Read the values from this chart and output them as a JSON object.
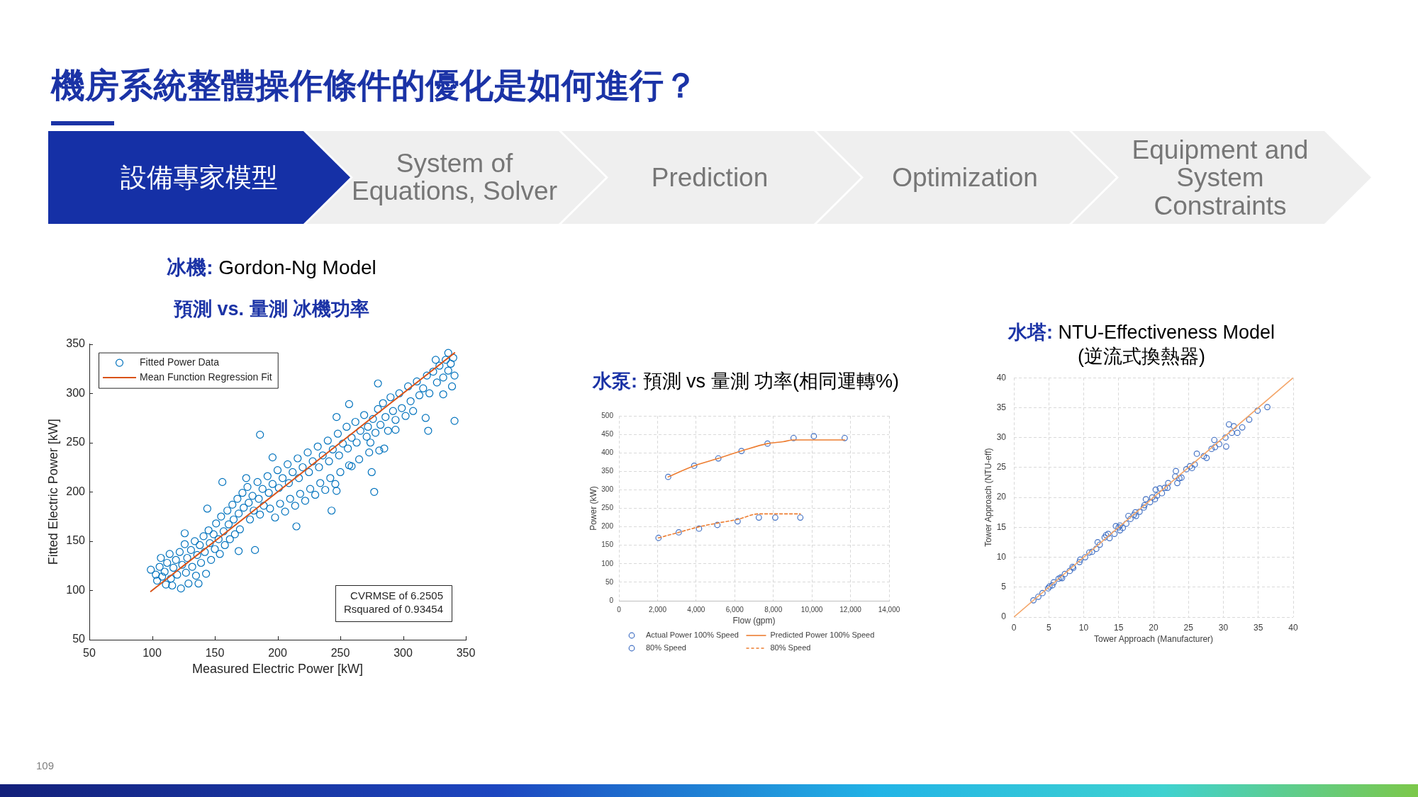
{
  "chart_data": [
    {
      "type": "other",
      "title": "機房系統整體操作條件的優化是如何進行？",
      "annotations": [
        "設備專家模型",
        "System of Equations, Solver",
        "Prediction",
        "Optimization",
        "Equipment and System Constraints",
        "109"
      ]
    },
    {
      "type": "scatter",
      "title": "冰機: Gordon-Ng Model",
      "subtitle": "預測 vs. 量測 冰機功率",
      "xlabel": "Measured Electric Power [kW]",
      "ylabel": "Fitted Electric Power [kW]",
      "xlim": [
        50,
        350
      ],
      "ylim": [
        50,
        350
      ],
      "xticks": [
        50,
        100,
        150,
        200,
        250,
        300,
        350
      ],
      "yticks": [
        50,
        100,
        150,
        200,
        250,
        300,
        350
      ],
      "legend": "top left",
      "marker": "circle",
      "annotations": [
        "CVRMSE of 6.2505",
        "Rsquared of 0.93454"
      ],
      "series": [
        {
          "name": "Fitted Power Data",
          "color": "#0072bd",
          "x": [
            99,
            103,
            104,
            106,
            107,
            108,
            110,
            111,
            112,
            114,
            115,
            116,
            117,
            119,
            120,
            122,
            123,
            124,
            126,
            127,
            128,
            129,
            131,
            132,
            134,
            135,
            136,
            138,
            139,
            141,
            142,
            143,
            145,
            146,
            147,
            149,
            150,
            151,
            153,
            154,
            155,
            157,
            158,
            160,
            161,
            162,
            164,
            165,
            166,
            168,
            169,
            170,
            172,
            173,
            176,
            177,
            178,
            180,
            181,
            184,
            185,
            186,
            188,
            189,
            192,
            193,
            194,
            196,
            198,
            200,
            201,
            202,
            204,
            206,
            208,
            209,
            210,
            212,
            214,
            216,
            217,
            218,
            220,
            222,
            224,
            225,
            226,
            228,
            230,
            232,
            233,
            234,
            236,
            238,
            240,
            241,
            242,
            244,
            246,
            248,
            249,
            250,
            252,
            255,
            256,
            257,
            259,
            262,
            263,
            265,
            266,
            269,
            271,
            272,
            274,
            276,
            278,
            280,
            282,
            284,
            286,
            288,
            290,
            292,
            294,
            297,
            299,
            302,
            304,
            306,
            308,
            311,
            313,
            316,
            319,
            321,
            324,
            327,
            329,
            332,
            334,
            336,
            338,
            340,
            341,
            186,
            277,
            275,
            243,
            215,
            341,
            320,
            318,
            294,
            247,
            257,
            273,
            281,
            285,
            196,
            156,
            175,
            144,
            126,
            137,
            182,
            169,
            332,
            326,
            336,
            247,
            280,
            339,
            259
          ],
          "values": [
            121,
            116,
            110,
            124,
            133,
            114,
            119,
            106,
            128,
            137,
            112,
            105,
            123,
            131,
            116,
            139,
            102,
            126,
            147,
            118,
            133,
            107,
            141,
            124,
            150,
            115,
            136,
            146,
            128,
            155,
            139,
            117,
            161,
            148,
            131,
            157,
            142,
            168,
            152,
            137,
            175,
            160,
            146,
            181,
            167,
            152,
            187,
            172,
            157,
            193,
            178,
            162,
            199,
            184,
            205,
            189,
            172,
            196,
            181,
            210,
            193,
            177,
            203,
            186,
            216,
            199,
            183,
            208,
            174,
            222,
            204,
            188,
            214,
            180,
            228,
            209,
            193,
            220,
            186,
            234,
            214,
            198,
            225,
            191,
            240,
            220,
            203,
            231,
            197,
            246,
            225,
            209,
            237,
            202,
            252,
            231,
            214,
            243,
            208,
            259,
            237,
            220,
            249,
            266,
            244,
            227,
            255,
            271,
            250,
            233,
            262,
            278,
            256,
            266,
            250,
            274,
            260,
            284,
            268,
            290,
            276,
            262,
            296,
            282,
            273,
            300,
            285,
            277,
            307,
            292,
            282,
            312,
            298,
            305,
            318,
            300,
            322,
            311,
            328,
            316,
            334,
            323,
            330,
            336,
            318,
            258,
            200,
            220,
            181,
            165,
            272,
            262,
            275,
            263,
            201,
            289,
            240,
            242,
            244,
            235,
            210,
            214,
            183,
            158,
            107,
            141,
            140,
            299,
            334,
            341,
            276,
            310,
            307,
            226
          ]
        },
        {
          "name": "Mean Function Regression Fit",
          "type": "line",
          "marker": "none",
          "color": "#d95319",
          "x": [
            99,
            341
          ],
          "values": [
            99,
            341
          ]
        }
      ]
    },
    {
      "type": "scatter",
      "title": "水泵: 預測 vs 量測 功率(相同運轉%)",
      "xlabel": "Flow (gpm)",
      "ylabel": "Power (kW)",
      "xlim": [
        0,
        14000
      ],
      "ylim": [
        0,
        500
      ],
      "xticks": [
        0,
        {
          "value": 2000,
          "label": "2,000"
        },
        {
          "value": 4000,
          "label": "4,000"
        },
        {
          "value": 6000,
          "label": "6,000"
        },
        {
          "value": 8000,
          "label": "8,000"
        },
        {
          "value": 10000,
          "label": "10,000"
        },
        {
          "value": 12000,
          "label": "12,000"
        },
        {
          "value": 14000,
          "label": "14,000"
        }
      ],
      "yticks": [
        0,
        50,
        100,
        150,
        200,
        250,
        300,
        350,
        400,
        450,
        500
      ],
      "grid": true,
      "legend": "bottom",
      "marker": "circle",
      "series": [
        {
          "name": "Actual Power 100% Speed",
          "color": "#4472c4",
          "x": [
            2550,
            3900,
            5150,
            6350,
            7700,
            9050,
            10100,
            11700
          ],
          "values": [
            335,
            365,
            385,
            405,
            425,
            440,
            445,
            440
          ]
        },
        {
          "name": "Predicted Power 100% Speed",
          "type": "line",
          "marker": "none",
          "color": "#ed7d31",
          "x": [
            2550,
            3900,
            5150,
            6350,
            7700,
            8500,
            9050,
            10100,
            11700
          ],
          "values": [
            335,
            365,
            385,
            405,
            425,
            430,
            435,
            435,
            435
          ]
        },
        {
          "name": "80% Speed",
          "color": "#4472c4",
          "x": [
            2050,
            3100,
            4150,
            5100,
            6150,
            7250,
            8100,
            9400
          ],
          "values": [
            170,
            185,
            195,
            205,
            215,
            225,
            225,
            225
          ]
        },
        {
          "name": "80% Speed",
          "type": "line",
          "marker": "none",
          "line_style": "dashed",
          "color": "#ed7d31",
          "x": [
            2050,
            3100,
            4150,
            5100,
            6150,
            7250,
            8100,
            9400
          ],
          "values": [
            170,
            185,
            200,
            210,
            220,
            235,
            235,
            235
          ]
        }
      ]
    },
    {
      "type": "scatter",
      "title": "水塔: NTU-Effectiveness Model",
      "subtitle": "(逆流式換熱器)",
      "xlabel": "Tower Approach (Manufacturer)",
      "ylabel": "Tower Approach (NTU-eff)",
      "xlim": [
        0,
        40
      ],
      "ylim": [
        0,
        40
      ],
      "xticks": [
        0,
        5,
        10,
        15,
        20,
        25,
        30,
        35,
        40
      ],
      "yticks": [
        0,
        5,
        10,
        15,
        20,
        25,
        30,
        35,
        40
      ],
      "grid": true,
      "marker": "circle",
      "series": [
        {
          "color": "#4472c4",
          "x": [
            2.8,
            3.5,
            4.1,
            4.9,
            5.1,
            5.5,
            5.7,
            6.4,
            6.7,
            6.9,
            7.3,
            8.0,
            8.4,
            8.5,
            9.4,
            9.5,
            10.2,
            10.8,
            11.2,
            11.8,
            12.0,
            12.3,
            13.0,
            13.2,
            13.5,
            13.7,
            14.4,
            14.6,
            15.0,
            15.2,
            15.2,
            15.6,
            16.1,
            16.4,
            16.7,
            17.2,
            17.4,
            17.5,
            18.0,
            18.6,
            18.7,
            18.9,
            19.5,
            19.8,
            20.2,
            20.3,
            20.5,
            20.9,
            21.2,
            21.6,
            22.0,
            22.1,
            23.2,
            23.1,
            23.4,
            23.7,
            24.0,
            24.7,
            25.2,
            25.5,
            25.9,
            26.2,
            27.2,
            27.6,
            28.3,
            28.7,
            28.8,
            29.4,
            30.3,
            30.4,
            30.8,
            31.2,
            31.5,
            32.0,
            32.7,
            33.7,
            34.9,
            36.3
          ],
          "values": [
            2.8,
            3.4,
            4.0,
            4.8,
            5.1,
            5.3,
            5.8,
            6.4,
            6.6,
            6.5,
            7.2,
            7.7,
            8.4,
            8.2,
            9.2,
            9.6,
            10.0,
            10.8,
            10.9,
            11.4,
            12.5,
            12.1,
            13.3,
            13.7,
            13.9,
            13.2,
            13.9,
            15.2,
            15.0,
            14.5,
            15.3,
            14.9,
            15.6,
            16.9,
            16.4,
            17.1,
            17.5,
            16.9,
            17.6,
            18.3,
            18.7,
            19.7,
            19.2,
            20.0,
            19.7,
            21.3,
            20.3,
            21.5,
            20.7,
            21.6,
            21.6,
            22.4,
            24.4,
            23.5,
            22.4,
            23.2,
            23.3,
            24.7,
            25.2,
            24.9,
            25.5,
            27.3,
            26.9,
            26.6,
            28.1,
            29.6,
            28.4,
            28.9,
            30.0,
            28.5,
            32.2,
            30.8,
            31.9,
            30.8,
            31.7,
            33.0,
            34.5,
            35.1
          ]
        },
        {
          "type": "line",
          "marker": "none",
          "color": "#f4a66a",
          "x": [
            0,
            40
          ],
          "values": [
            0,
            40
          ]
        }
      ]
    }
  ]
}
